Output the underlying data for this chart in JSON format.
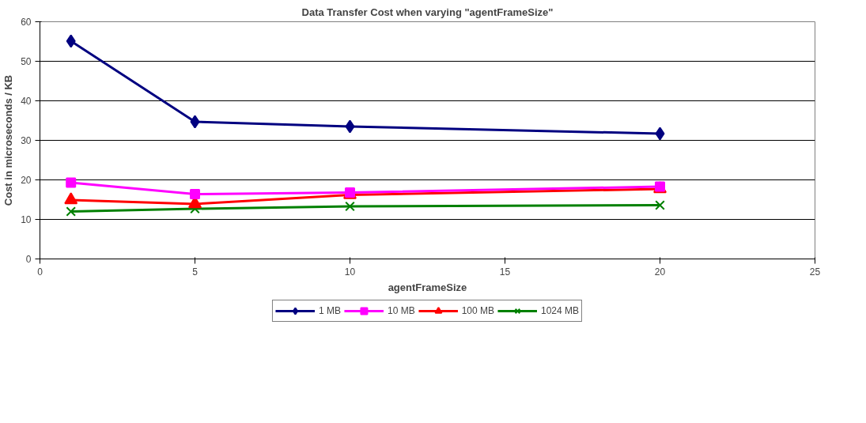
{
  "chart_data": {
    "type": "line",
    "title": "Data Transfer Cost when varying \"agentFrameSize\"",
    "xlabel": "agentFrameSize",
    "ylabel": "Cost in microseconds / KB",
    "x": [
      1,
      5,
      10,
      20
    ],
    "series": [
      {
        "name": "1 MB",
        "color": "#000080",
        "marker": "diamond",
        "values": [
          55.1,
          34.7,
          33.5,
          31.7
        ]
      },
      {
        "name": "10 MB",
        "color": "#ff00ff",
        "marker": "square",
        "values": [
          19.3,
          16.4,
          16.8,
          18.3
        ]
      },
      {
        "name": "100 MB",
        "color": "#ff0000",
        "marker": "triangle",
        "values": [
          14.9,
          13.9,
          16.2,
          17.7
        ]
      },
      {
        "name": "1024 MB",
        "color": "#008000",
        "marker": "cross",
        "values": [
          12.0,
          12.7,
          13.3,
          13.6
        ]
      }
    ],
    "xlim": [
      0,
      25
    ],
    "xticks": [
      0,
      5,
      10,
      15,
      20,
      25
    ],
    "ylim": [
      0,
      60
    ],
    "yticks": [
      0,
      10,
      20,
      30,
      40,
      50,
      60
    ],
    "grid": "y",
    "legend": "bottom",
    "line_style": "solid"
  }
}
